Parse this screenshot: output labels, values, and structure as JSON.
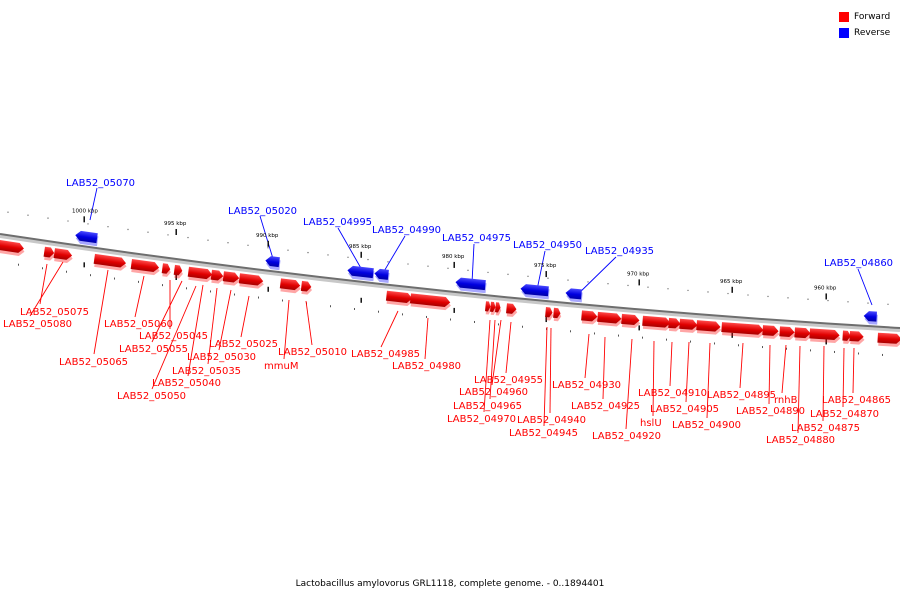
{
  "legend": {
    "forward_label": "Forward",
    "reverse_label": "Reverse",
    "forward_color": "#ff0000",
    "reverse_color": "#0000ff"
  },
  "caption": "Lactobacillus amylovorus GRL1118, complete genome. - 0..1894401",
  "axis_ticks": [
    "1000 kbp",
    "995 kbp",
    "990 kbp",
    "985 kbp",
    "980 kbp",
    "975 kbp",
    "970 kbp",
    "965 kbp",
    "960 kbp"
  ],
  "reverse_genes": [
    "LAB52_05070",
    "LAB52_05020",
    "LAB52_04995",
    "LAB52_04990",
    "LAB52_04975",
    "LAB52_04950",
    "LAB52_04935",
    "LAB52_04860"
  ],
  "forward_genes": [
    "LAB52_05075",
    "LAB52_05080",
    "LAB52_05065",
    "LAB52_05060",
    "LAB52_05045",
    "LAB52_05055",
    "LAB52_05040",
    "LAB52_05050",
    "LAB52_05030",
    "LAB52_05035",
    "LAB52_05025",
    "LAB52_05010",
    "mmuM",
    "LAB52_04985",
    "LAB52_04980",
    "LAB52_04955",
    "LAB52_04960",
    "LAB52_04965",
    "LAB52_04970",
    "LAB52_04940",
    "LAB52_04945",
    "LAB52_04930",
    "LAB52_04925",
    "LAB52_04920",
    "hslU",
    "LAB52_04910",
    "LAB52_04905",
    "LAB52_04900",
    "LAB52_04895",
    "rnhB",
    "LAB52_04890",
    "LAB52_04875",
    "LAB52_04880",
    "LAB52_04865",
    "LAB52_04870"
  ]
}
